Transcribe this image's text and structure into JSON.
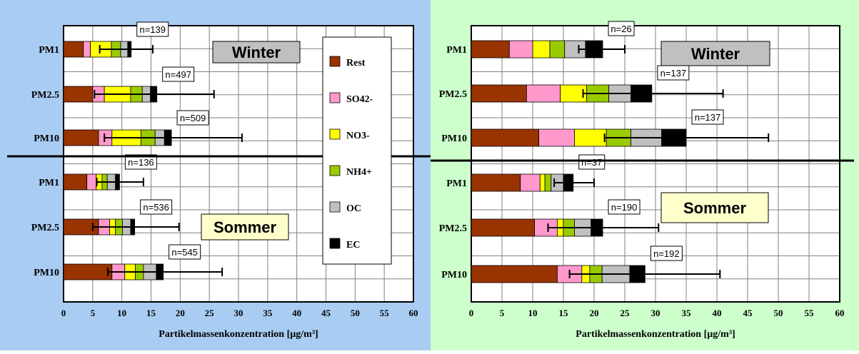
{
  "chart_data": [
    {
      "type": "bar",
      "stacked": true,
      "orientation": "horizontal",
      "background": "#a9cdf2",
      "xlabel": "Partikelmassenkonzentration [µg/m³]",
      "xlim": [
        0,
        60
      ],
      "xticks": [
        0,
        5,
        10,
        15,
        20,
        25,
        30,
        35,
        40,
        45,
        50,
        55,
        60
      ],
      "grid": true,
      "legend": {
        "position": "center-right",
        "entries": [
          {
            "label": "Rest",
            "color": "#993300"
          },
          {
            "label": "SO42-",
            "color": "#ff99cc"
          },
          {
            "label": "NO3-",
            "color": "#ffff00"
          },
          {
            "label": "NH4+",
            "color": "#99cc00"
          },
          {
            "label": "OC",
            "color": "#c0c0c0"
          },
          {
            "label": "EC",
            "color": "#000000"
          }
        ]
      },
      "season_labels": [
        {
          "text": "Winter",
          "group": "top",
          "color": "#c0c0c0"
        },
        {
          "text": "Sommer",
          "group": "bottom",
          "color": "#ffffcc"
        }
      ],
      "groups": [
        {
          "season": "Winter",
          "bars": [
            {
              "category": "PM1",
              "values": [
                3.4,
                1.2,
                3.6,
                1.6,
                1.2,
                0.6
              ],
              "err_low": 6.2,
              "err_high": 15.3,
              "n_label": "n=139"
            },
            {
              "category": "PM2.5",
              "values": [
                5.0,
                2.0,
                4.5,
                2.0,
                1.4,
                1.1
              ],
              "err_low": 5.3,
              "err_high": 25.8,
              "n_label": "n=497"
            },
            {
              "category": "PM10",
              "values": [
                6.0,
                2.3,
                5.0,
                2.4,
                1.6,
                1.2
              ],
              "err_low": 7.0,
              "err_high": 30.6,
              "n_label": "n=509"
            }
          ]
        },
        {
          "season": "Sommer",
          "bars": [
            {
              "category": "PM1",
              "values": [
                4.0,
                1.6,
                1.0,
                0.9,
                1.4,
                0.7
              ],
              "err_low": 5.7,
              "err_high": 13.7,
              "n_label": "n=136"
            },
            {
              "category": "PM2.5",
              "values": [
                6.0,
                1.9,
                1.0,
                1.2,
                1.4,
                0.7
              ],
              "err_low": 5.0,
              "err_high": 19.8,
              "n_label": "n=536"
            },
            {
              "category": "PM10",
              "values": [
                8.3,
                2.2,
                1.8,
                1.4,
                2.2,
                1.2
              ],
              "err_low": 7.6,
              "err_high": 27.2,
              "n_label": "n=545"
            }
          ]
        }
      ]
    },
    {
      "type": "bar",
      "stacked": true,
      "orientation": "horizontal",
      "background": "#ccffcc",
      "xlabel": "Partikelmassenkonzentration [µg/m³]",
      "xlim": [
        0,
        60
      ],
      "xticks": [
        0,
        5,
        10,
        15,
        20,
        25,
        30,
        35,
        40,
        45,
        50,
        55,
        60
      ],
      "grid": true,
      "season_labels": [
        {
          "text": "Winter",
          "group": "top",
          "color": "#c0c0c0"
        },
        {
          "text": "Sommer",
          "group": "bottom",
          "color": "#ffffcc"
        }
      ],
      "groups": [
        {
          "season": "Winter",
          "bars": [
            {
              "category": "PM1",
              "values": [
                6.2,
                3.8,
                2.8,
                2.4,
                3.4,
                2.8
              ],
              "err_low": 17.5,
              "err_high": 25.0,
              "n_label": "n=26"
            },
            {
              "category": "PM2.5",
              "values": [
                9.0,
                5.5,
                4.3,
                3.6,
                3.6,
                3.4
              ],
              "err_low": 18.2,
              "err_high": 41.0,
              "n_label": "n=137"
            },
            {
              "category": "PM10",
              "values": [
                11.0,
                5.8,
                5.2,
                4.0,
                5.0,
                4.0
              ],
              "err_low": 21.7,
              "err_high": 48.4,
              "n_label": "n=137"
            }
          ]
        },
        {
          "season": "Sommer",
          "bars": [
            {
              "category": "PM1",
              "values": [
                8.0,
                3.2,
                0.8,
                1.0,
                2.0,
                1.6
              ],
              "err_low": 13.5,
              "err_high": 20.0,
              "n_label": "n=37"
            },
            {
              "category": "PM2.5",
              "values": [
                10.3,
                3.7,
                1.0,
                1.8,
                2.7,
                1.9
              ],
              "err_low": 12.5,
              "err_high": 30.5,
              "n_label": "n=190"
            },
            {
              "category": "PM10",
              "values": [
                14.0,
                4.0,
                1.3,
                2.0,
                4.5,
                2.5
              ],
              "err_low": 16.0,
              "err_high": 40.5,
              "n_label": "n=192"
            }
          ]
        }
      ]
    }
  ]
}
